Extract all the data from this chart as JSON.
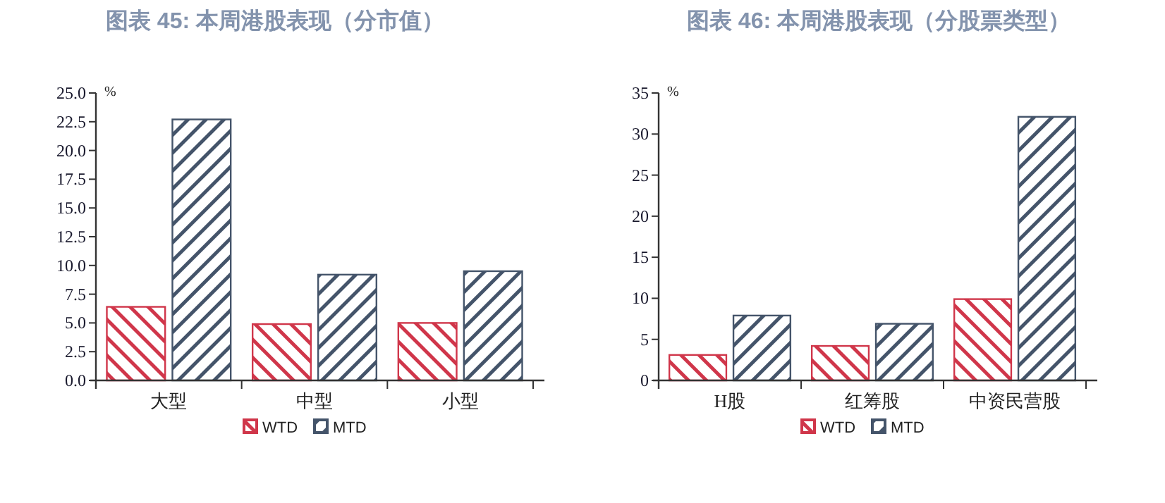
{
  "chart_data": [
    {
      "type": "bar",
      "title": "图表 45: 本周港股表现（分市值）",
      "ylabel": "%",
      "categories": [
        "大型",
        "中型",
        "小型"
      ],
      "series": [
        {
          "name": "WTD",
          "color": "#d0364a",
          "values": [
            6.4,
            4.9,
            5.0
          ]
        },
        {
          "name": "MTD",
          "color": "#44546a",
          "values": [
            22.7,
            9.2,
            9.5
          ]
        }
      ],
      "ylim": [
        0,
        25
      ],
      "yticks": [
        {
          "value": 0,
          "label": "0.0"
        },
        {
          "value": 2.5,
          "label": "2.5"
        },
        {
          "value": 5,
          "label": "5.0"
        },
        {
          "value": 7.5,
          "label": "7.5"
        },
        {
          "value": 10,
          "label": "10.0"
        },
        {
          "value": 12.5,
          "label": "12.5"
        },
        {
          "value": 15,
          "label": "15.0"
        },
        {
          "value": 17.5,
          "label": "17.5"
        },
        {
          "value": 20,
          "label": "20.0"
        },
        {
          "value": 22.5,
          "label": "22.5"
        },
        {
          "value": 25,
          "label": "25.0"
        }
      ],
      "legend": "bottom",
      "grid": false
    },
    {
      "type": "bar",
      "title": "图表 46: 本周港股表现（分股票类型）",
      "ylabel": "%",
      "categories": [
        "H股",
        "红筹股",
        "中资民营股"
      ],
      "series": [
        {
          "name": "WTD",
          "color": "#d0364a",
          "values": [
            3.1,
            4.2,
            9.9
          ]
        },
        {
          "name": "MTD",
          "color": "#44546a",
          "values": [
            7.9,
            6.9,
            32.1
          ]
        }
      ],
      "ylim": [
        0,
        35
      ],
      "yticks": [
        0,
        5,
        10,
        15,
        20,
        25,
        30,
        35
      ],
      "legend": "bottom",
      "grid": false
    }
  ]
}
